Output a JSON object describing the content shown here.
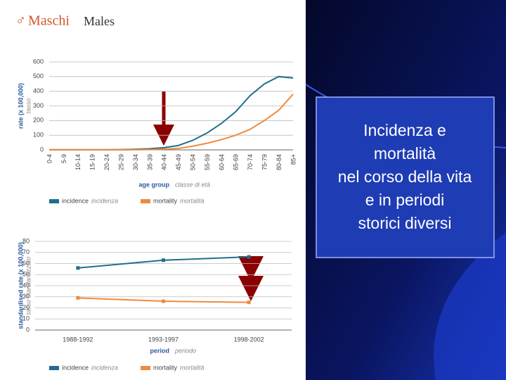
{
  "header": {
    "symbol": "♂",
    "title": "Maschi",
    "subtitle": "Males"
  },
  "textbox": {
    "lines": [
      "Incidenza e",
      "mortalità",
      "nel corso della vita",
      "e in periodi",
      "storici diversi"
    ]
  },
  "chart_data": [
    {
      "type": "line",
      "y_label": "rate (x 100,000)",
      "y_label_it": "tasso",
      "x_label": "age group",
      "x_label_it": "classe di età",
      "categories": [
        "0-4",
        "5-9",
        "10-14",
        "15-19",
        "20-24",
        "25-29",
        "30-34",
        "35-39",
        "40-44",
        "45-49",
        "50-54",
        "55-59",
        "60-64",
        "65-69",
        "70-74",
        "75-79",
        "80-84",
        "85+"
      ],
      "series": [
        {
          "name": "incidence",
          "name_it": "incidenza",
          "color": "#1f6f8b",
          "values": [
            1,
            1,
            1,
            1,
            1,
            2,
            4,
            8,
            15,
            30,
            65,
            115,
            180,
            260,
            370,
            450,
            500,
            490
          ]
        },
        {
          "name": "mortality",
          "name_it": "mortalità",
          "color": "#f08a3c",
          "values": [
            0,
            0,
            0,
            0,
            0,
            0,
            1,
            2,
            5,
            10,
            25,
            45,
            70,
            100,
            140,
            200,
            270,
            380
          ]
        }
      ],
      "ylim": [
        0,
        600
      ],
      "yticks": [
        0,
        100,
        200,
        300,
        400,
        500,
        600
      ],
      "grid": true
    },
    {
      "type": "line",
      "y_label": "standardised rate (x 100,000)",
      "y_label_it": "tasso standardizzato",
      "x_label": "period",
      "x_label_it": "periodo",
      "categories": [
        "1988-1992",
        "1993-1997",
        "1998-2002"
      ],
      "series": [
        {
          "name": "incidence",
          "name_it": "incidenza",
          "color": "#1f6f8b",
          "values": [
            56,
            63,
            66
          ]
        },
        {
          "name": "mortality",
          "name_it": "mortalità",
          "color": "#f08a3c",
          "values": [
            29,
            26,
            25
          ]
        }
      ],
      "ylim": [
        0,
        80
      ],
      "yticks": [
        0,
        10,
        20,
        30,
        40,
        50,
        60,
        70,
        80
      ],
      "grid": true,
      "markers": true
    }
  ]
}
